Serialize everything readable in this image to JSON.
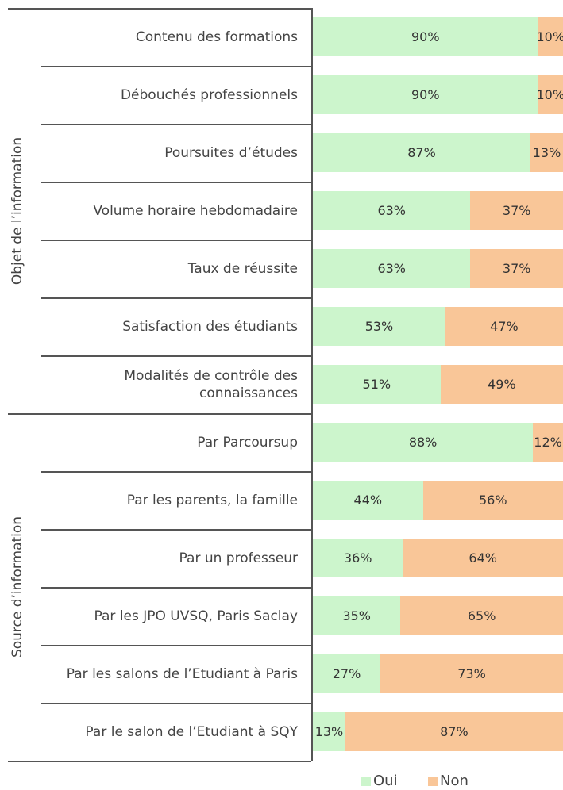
{
  "chart_data": {
    "type": "bar",
    "orientation": "horizontal",
    "stacked": true,
    "xlim": [
      0,
      100
    ],
    "groups": [
      {
        "name": "Objet de l’information",
        "categories": [
          "Contenu des formations",
          "Débouchés professionnels",
          "Poursuites d’études",
          "Volume horaire hebdomadaire",
          "Taux de réussite",
          "Satisfaction des étudiants",
          "Modalités de contrôle des connaissances"
        ]
      },
      {
        "name": "Source d’information",
        "categories": [
          "Par Parcoursup",
          "Par les parents, la famille",
          "Par un professeur",
          "Par les JPO UVSQ, Paris Saclay",
          "Par les salons de l’Etudiant à Paris",
          "Par le salon de l’Etudiant à SQY"
        ]
      }
    ],
    "series": [
      {
        "name": "Oui",
        "color": "#ccf5cc",
        "values": [
          90,
          90,
          87,
          63,
          63,
          53,
          51,
          88,
          44,
          36,
          35,
          27,
          13
        ],
        "value_labels": [
          "90%",
          "90%",
          "87%",
          "63%",
          "63%",
          "53%",
          "51%",
          "88%",
          "44%",
          "36%",
          "35%",
          "27%",
          "13%"
        ]
      },
      {
        "name": "Non",
        "color": "#f9c698",
        "values": [
          10,
          10,
          13,
          37,
          37,
          47,
          49,
          12,
          56,
          64,
          65,
          73,
          87
        ],
        "value_labels": [
          "10%",
          "10%",
          "13%",
          "37%",
          "37%",
          "47%",
          "49%",
          "12%",
          "56%",
          "64%",
          "65%",
          "73%",
          "87%"
        ]
      }
    ],
    "legend": "bottom"
  }
}
